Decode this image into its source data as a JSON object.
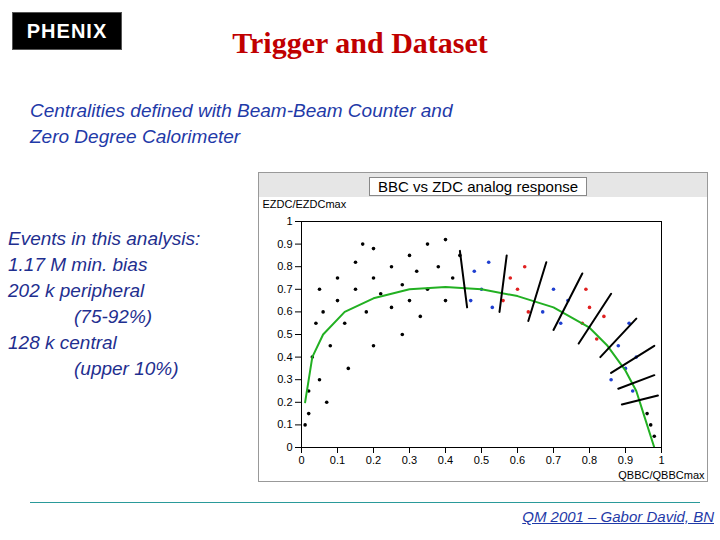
{
  "slide": {
    "logo": "PHENIX",
    "title": "Trigger and Dataset",
    "subtitle_lines": [
      "Centralities defined with Beam-Beam Counter and",
      "Zero Degree Calorimeter"
    ],
    "side_text_lines": [
      "Events in this analysis:",
      "1.17 M min. bias",
      "202 k peripheral",
      "(75-92%)",
      "128 k central",
      "(upper 10%)"
    ],
    "footer": "QM 2001 – Gabor David, BN"
  },
  "chart_data": {
    "type": "scatter",
    "title": "BBC vs ZDC analog response",
    "x_label": "QBBC/QBBCmax",
    "y_label": "EZDC/EZDCmax",
    "xlim": [
      0,
      1
    ],
    "ylim": [
      0,
      1
    ],
    "xticks": [
      0,
      0.1,
      0.2,
      0.3,
      0.4,
      0.5,
      0.6,
      0.7,
      0.8,
      0.9,
      1
    ],
    "yticks": [
      0,
      0.1,
      0.2,
      0.3,
      0.4,
      0.5,
      0.6,
      0.7,
      0.8,
      0.9,
      1
    ],
    "grid": false,
    "series": [
      {
        "type": "scatter",
        "color": "#000000",
        "x": [
          0.02,
          0.03,
          0.05,
          0.04,
          0.06,
          0.08,
          0.1,
          0.1,
          0.12,
          0.15,
          0.15,
          0.18,
          0.2,
          0.2,
          0.22,
          0.25,
          0.25,
          0.28,
          0.3,
          0.3,
          0.32,
          0.35,
          0.35,
          0.38,
          0.4,
          0.42,
          0.44,
          0.01,
          0.02,
          0.07,
          0.13,
          0.2,
          0.28,
          0.97,
          0.98,
          0.96,
          0.05,
          0.17,
          0.33,
          0.4
        ],
        "values": [
          0.25,
          0.4,
          0.3,
          0.55,
          0.6,
          0.45,
          0.65,
          0.75,
          0.55,
          0.7,
          0.82,
          0.6,
          0.75,
          0.88,
          0.68,
          0.8,
          0.62,
          0.72,
          0.85,
          0.65,
          0.78,
          0.7,
          0.9,
          0.8,
          0.65,
          0.75,
          0.85,
          0.1,
          0.15,
          0.2,
          0.35,
          0.45,
          0.5,
          0.1,
          0.05,
          0.15,
          0.7,
          0.9,
          0.58,
          0.92
        ]
      },
      {
        "type": "scatter",
        "color": "#1f3fd0",
        "x": [
          0.47,
          0.48,
          0.5,
          0.52,
          0.53,
          0.67,
          0.7,
          0.72,
          0.74,
          0.86,
          0.88,
          0.9,
          0.92,
          0.93,
          0.91
        ],
        "values": [
          0.65,
          0.78,
          0.7,
          0.82,
          0.62,
          0.6,
          0.7,
          0.55,
          0.65,
          0.3,
          0.45,
          0.35,
          0.25,
          0.4,
          0.55
        ]
      },
      {
        "type": "scatter",
        "color": "#e02020",
        "x": [
          0.56,
          0.58,
          0.6,
          0.62,
          0.63,
          0.78,
          0.8,
          0.82,
          0.84,
          0.79
        ],
        "values": [
          0.65,
          0.75,
          0.7,
          0.8,
          0.6,
          0.55,
          0.62,
          0.48,
          0.58,
          0.7
        ]
      },
      {
        "type": "line",
        "color": "#22b022",
        "x": [
          0.01,
          0.03,
          0.06,
          0.12,
          0.2,
          0.3,
          0.4,
          0.5,
          0.6,
          0.7,
          0.8,
          0.85,
          0.9,
          0.93,
          0.95,
          0.97,
          0.98
        ],
        "values": [
          0.2,
          0.4,
          0.5,
          0.6,
          0.66,
          0.7,
          0.71,
          0.7,
          0.67,
          0.62,
          0.53,
          0.45,
          0.34,
          0.25,
          0.15,
          0.05,
          0
        ]
      },
      {
        "type": "line",
        "color": "#000000",
        "x": [
          0.46,
          0.44,
          0.45,
          0.55,
          0.57,
          0.56,
          0.63,
          0.68,
          0.65,
          0.7,
          0.78,
          0.74,
          0.77,
          0.86,
          0.8,
          0.83,
          0.93,
          0.9,
          0.86,
          0.98,
          0.9,
          0.88,
          0.98,
          0.9,
          0.89,
          0.99
        ],
        "values": [
          0.62,
          0.87,
          null,
          0.6,
          0.85,
          null,
          0.56,
          0.82,
          null,
          0.52,
          0.77,
          null,
          0.46,
          0.68,
          null,
          0.4,
          0.57,
          null,
          0.33,
          0.45,
          null,
          0.26,
          0.32,
          null,
          0.19,
          0.23
        ]
      }
    ]
  }
}
